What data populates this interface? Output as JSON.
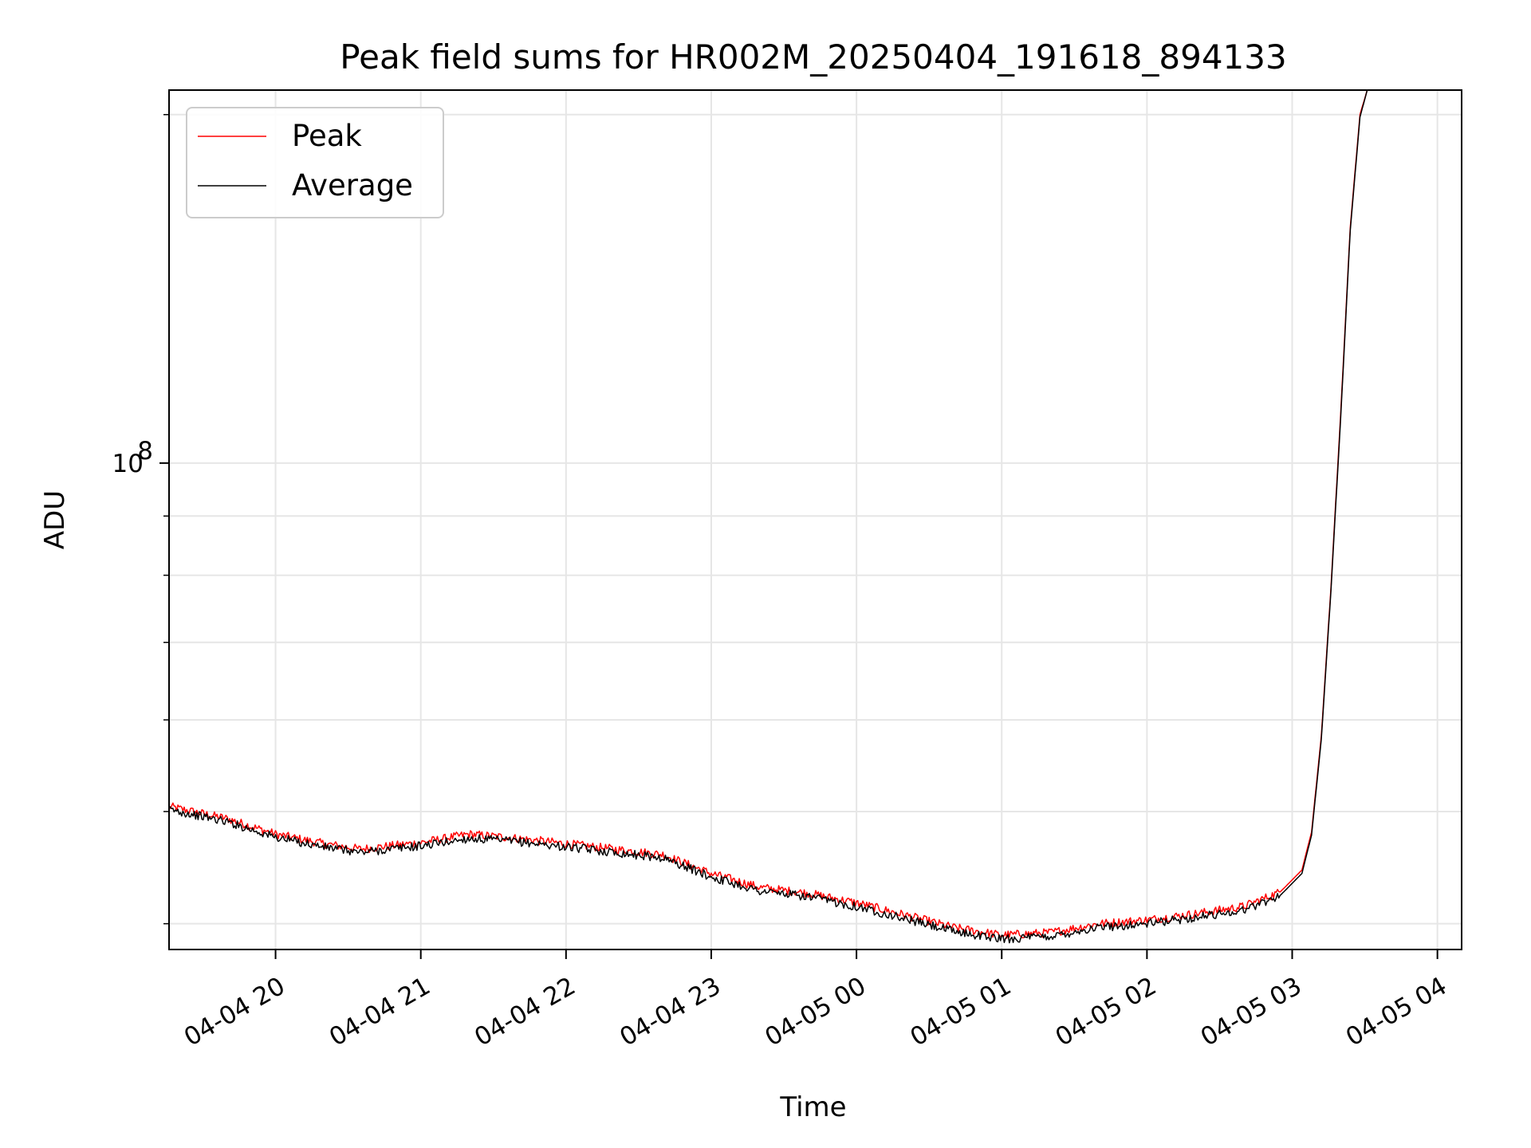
{
  "chart_data": {
    "type": "line",
    "title": "Peak field sums for HR002M_20250404_191618_894133",
    "xlabel": "Time",
    "ylabel": "ADU",
    "xscale": "time",
    "yscale": "log",
    "grid": true,
    "legend": "top-left",
    "xlim": [
      "2025-04-04 19:16",
      "2025-04-05 04:10"
    ],
    "ylim": [
      38000000,
      210000000
    ],
    "x_ticks": [
      "04-04 20",
      "04-04 21",
      "04-04 22",
      "04-04 23",
      "04-05 00",
      "04-05 01",
      "04-05 02",
      "04-05 03",
      "04-05 04"
    ],
    "x_tick_values": [
      "2025-04-04 20:00",
      "2025-04-04 21:00",
      "2025-04-04 22:00",
      "2025-04-04 23:00",
      "2025-04-05 00:00",
      "2025-04-05 01:00",
      "2025-04-05 02:00",
      "2025-04-05 03:00",
      "2025-04-05 04:00"
    ],
    "y_major_ticks": [
      {
        "value": 100000000,
        "base": "10",
        "exp": "8"
      }
    ],
    "y_minor_ticks": [
      40000000,
      50000000,
      60000000,
      70000000,
      80000000,
      90000000,
      200000000
    ],
    "series": [
      {
        "name": "Peak",
        "color": "#ff0000",
        "points": [
          [
            "2025-04-04 19:16",
            50500000
          ],
          [
            "2025-04-04 19:40",
            49300000
          ],
          [
            "2025-04-04 20:00",
            47800000
          ],
          [
            "2025-04-04 20:20",
            46900000
          ],
          [
            "2025-04-04 20:35",
            46400000
          ],
          [
            "2025-04-04 21:00",
            47000000
          ],
          [
            "2025-04-04 21:20",
            47800000
          ],
          [
            "2025-04-04 21:40",
            47400000
          ],
          [
            "2025-04-04 22:00",
            46900000
          ],
          [
            "2025-04-04 22:20",
            46400000
          ],
          [
            "2025-04-04 22:40",
            45900000
          ],
          [
            "2025-04-04 23:00",
            44200000
          ],
          [
            "2025-04-04 23:20",
            43000000
          ],
          [
            "2025-04-04 23:40",
            42500000
          ],
          [
            "2025-04-05 00:00",
            41700000
          ],
          [
            "2025-04-05 00:20",
            40700000
          ],
          [
            "2025-04-05 00:40",
            39700000
          ],
          [
            "2025-04-05 01:00",
            39100000
          ],
          [
            "2025-04-05 01:20",
            39300000
          ],
          [
            "2025-04-05 01:40",
            40000000
          ],
          [
            "2025-04-05 02:00",
            40300000
          ],
          [
            "2025-04-05 02:20",
            40800000
          ],
          [
            "2025-04-05 02:40",
            41400000
          ],
          [
            "2025-04-05 02:55",
            42600000
          ],
          [
            "2025-04-05 03:04",
            44500000
          ],
          [
            "2025-04-05 03:08",
            48000000
          ],
          [
            "2025-04-05 03:12",
            58000000
          ],
          [
            "2025-04-05 03:16",
            78000000
          ],
          [
            "2025-04-05 03:20",
            110000000
          ],
          [
            "2025-04-05 03:24",
            160000000
          ],
          [
            "2025-04-05 03:28",
            200000000
          ],
          [
            "2025-04-05 03:31",
            210000000
          ]
        ]
      },
      {
        "name": "Average",
        "color": "#000000",
        "points": [
          [
            "2025-04-04 19:16",
            50200000
          ],
          [
            "2025-04-04 19:40",
            49000000
          ],
          [
            "2025-04-04 20:00",
            47500000
          ],
          [
            "2025-04-04 20:20",
            46600000
          ],
          [
            "2025-04-04 20:35",
            46100000
          ],
          [
            "2025-04-04 21:00",
            46700000
          ],
          [
            "2025-04-04 21:20",
            47400000
          ],
          [
            "2025-04-04 21:40",
            47100000
          ],
          [
            "2025-04-04 22:00",
            46600000
          ],
          [
            "2025-04-04 22:20",
            46100000
          ],
          [
            "2025-04-04 22:40",
            45600000
          ],
          [
            "2025-04-04 23:00",
            43900000
          ],
          [
            "2025-04-04 23:20",
            42700000
          ],
          [
            "2025-04-04 23:40",
            42200000
          ],
          [
            "2025-04-05 00:00",
            41400000
          ],
          [
            "2025-04-05 00:20",
            40400000
          ],
          [
            "2025-04-05 00:40",
            39400000
          ],
          [
            "2025-04-05 01:00",
            38800000
          ],
          [
            "2025-04-05 01:20",
            39000000
          ],
          [
            "2025-04-05 01:40",
            39700000
          ],
          [
            "2025-04-05 02:00",
            40000000
          ],
          [
            "2025-04-05 02:20",
            40500000
          ],
          [
            "2025-04-05 02:40",
            41100000
          ],
          [
            "2025-04-05 02:55",
            42300000
          ],
          [
            "2025-04-05 03:04",
            44200000
          ],
          [
            "2025-04-05 03:08",
            47700000
          ],
          [
            "2025-04-05 03:12",
            57600000
          ],
          [
            "2025-04-05 03:16",
            77500000
          ],
          [
            "2025-04-05 03:20",
            109000000
          ],
          [
            "2025-04-05 03:24",
            159000000
          ],
          [
            "2025-04-05 03:28",
            199000000
          ],
          [
            "2025-04-05 03:31",
            210000000
          ]
        ]
      }
    ]
  }
}
